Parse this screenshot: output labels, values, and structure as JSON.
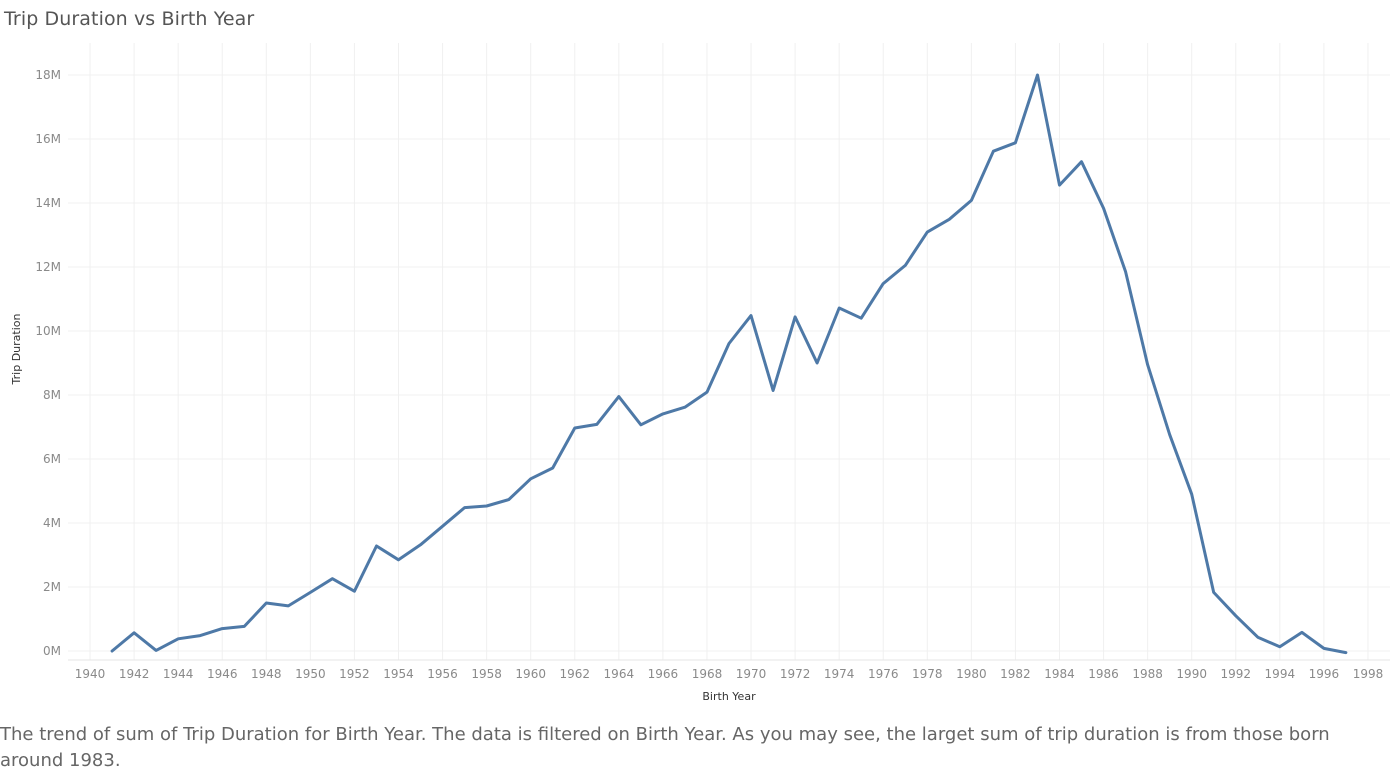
{
  "title": "Trip Duration vs Birth Year",
  "caption": "The trend of sum of Trip Duration for Birth Year. The data is filtered on Birth Year. As you may see, the larget sum of trip duration is from those born around 1983.",
  "chart_data": {
    "type": "line",
    "title": "Trip Duration vs Birth Year",
    "xlabel": "Birth Year",
    "ylabel": "Trip Duration",
    "xlim": [
      1939,
      1999
    ],
    "ylim": [
      0,
      18000000
    ],
    "grid": true,
    "line_color": "#4e79a7",
    "x_ticks": [
      1940,
      1942,
      1944,
      1946,
      1948,
      1950,
      1952,
      1954,
      1956,
      1958,
      1960,
      1962,
      1964,
      1966,
      1968,
      1970,
      1972,
      1974,
      1976,
      1978,
      1980,
      1982,
      1984,
      1986,
      1988,
      1990,
      1992,
      1994,
      1996,
      1998
    ],
    "x_tick_labels": [
      "1940",
      "1942",
      "1944",
      "1946",
      "1948",
      "1950",
      "1952",
      "1954",
      "1956",
      "1958",
      "1960",
      "1962",
      "1964",
      "1966",
      "1968",
      "1970",
      "1972",
      "1974",
      "1976",
      "1978",
      "1980",
      "1982",
      "1984",
      "1986",
      "1988",
      "1990",
      "1992",
      "1994",
      "1996",
      "1998"
    ],
    "y_ticks": [
      0,
      2000000,
      4000000,
      6000000,
      8000000,
      10000000,
      12000000,
      14000000,
      16000000,
      18000000
    ],
    "y_tick_labels": [
      "0M",
      "2M",
      "4M",
      "6M",
      "8M",
      "10M",
      "12M",
      "14M",
      "16M",
      "18M"
    ],
    "x": [
      1941,
      1942,
      1943,
      1944,
      1945,
      1946,
      1947,
      1948,
      1949,
      1950,
      1951,
      1952,
      1953,
      1954,
      1955,
      1956,
      1957,
      1958,
      1959,
      1960,
      1961,
      1962,
      1963,
      1964,
      1965,
      1966,
      1967,
      1968,
      1969,
      1970,
      1971,
      1972,
      1973,
      1974,
      1975,
      1976,
      1977,
      1978,
      1979,
      1980,
      1981,
      1982,
      1983,
      1984,
      1985,
      1986,
      1987,
      1988,
      1989,
      1990,
      1991,
      1992,
      1993,
      1994,
      1995,
      1996,
      1997
    ],
    "y": [
      0,
      570000,
      20000,
      380000,
      480000,
      700000,
      770000,
      1500000,
      1410000,
      1830000,
      2260000,
      1870000,
      3280000,
      2850000,
      3320000,
      3900000,
      4480000,
      4530000,
      4730000,
      5380000,
      5720000,
      6970000,
      7080000,
      7950000,
      7070000,
      7410000,
      7620000,
      8090000,
      9610000,
      10480000,
      8140000,
      10440000,
      9000000,
      10720000,
      10400000,
      11480000,
      12050000,
      13090000,
      13490000,
      14080000,
      15620000,
      15880000,
      18000000,
      14560000,
      15290000,
      13830000,
      11850000,
      8950000,
      6760000,
      4900000,
      1830000,
      1100000,
      430000,
      130000,
      580000,
      80000,
      -50000
    ]
  }
}
